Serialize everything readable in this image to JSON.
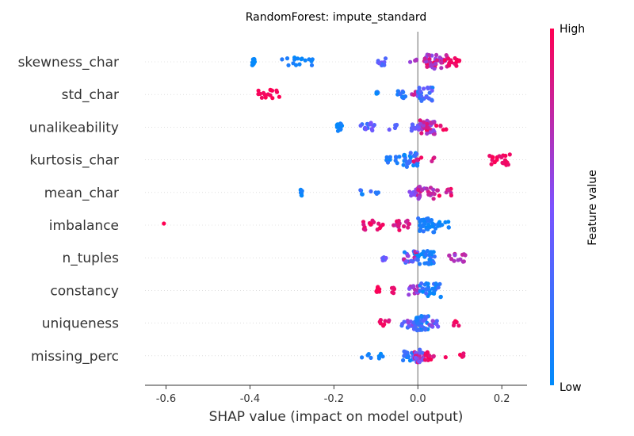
{
  "chart_data": {
    "type": "scatter",
    "subtype": "shap-beeswarm",
    "title": "RandomForest: impute_standard",
    "xlabel": "SHAP value (impact on model output)",
    "xlim": [
      -0.65,
      0.26
    ],
    "xticks": [
      "-0.6",
      "-0.4",
      "-0.2",
      "0.0",
      "0.2"
    ],
    "xtick_values": [
      -0.6,
      -0.4,
      -0.2,
      0.0,
      0.2
    ],
    "zero_line": 0.0,
    "colorbar": {
      "label": "Feature value",
      "high": "High",
      "low": "Low",
      "low_color": "#008bfb",
      "mid_color": "#7c52ff",
      "high_color": "#ff0052"
    },
    "features": [
      {
        "name": "skewness_char",
        "clusters": [
          {
            "x": [
              -0.395,
              -0.385
            ],
            "c": [
              0.0,
              0.05
            ],
            "n": 10
          },
          {
            "x": [
              -0.33,
              -0.25
            ],
            "c": [
              0.0,
              0.15
            ],
            "n": 16
          },
          {
            "x": [
              -0.095,
              -0.075
            ],
            "c": [
              0.25,
              0.5
            ],
            "n": 10
          },
          {
            "x": [
              -0.02,
              0.0
            ],
            "c": [
              0.6,
              0.7
            ],
            "n": 4
          },
          {
            "x": [
              0.015,
              0.07
            ],
            "c": [
              0.55,
              1.0
            ],
            "n": 45
          },
          {
            "x": [
              0.07,
              0.1
            ],
            "c": [
              0.9,
              1.0
            ],
            "n": 14
          }
        ]
      },
      {
        "name": "std_char",
        "clusters": [
          {
            "x": [
              -0.38,
              -0.33
            ],
            "c": [
              0.95,
              1.0
            ],
            "n": 16
          },
          {
            "x": [
              -0.1,
              -0.095
            ],
            "c": [
              0.0,
              0.15
            ],
            "n": 5
          },
          {
            "x": [
              -0.05,
              -0.02
            ],
            "c": [
              0.0,
              0.4
            ],
            "n": 12
          },
          {
            "x": [
              -0.02,
              0.0
            ],
            "c": [
              0.7,
              1.0
            ],
            "n": 6
          },
          {
            "x": [
              0.0,
              0.035
            ],
            "c": [
              0.1,
              0.5
            ],
            "n": 30
          }
        ]
      },
      {
        "name": "unalikeability",
        "clusters": [
          {
            "x": [
              -0.195,
              -0.18
            ],
            "c": [
              0.0,
              0.1
            ],
            "n": 12
          },
          {
            "x": [
              -0.14,
              -0.1
            ],
            "c": [
              0.2,
              0.5
            ],
            "n": 14
          },
          {
            "x": [
              -0.07,
              -0.05
            ],
            "c": [
              0.3,
              0.5
            ],
            "n": 5
          },
          {
            "x": [
              -0.015,
              0.005
            ],
            "c": [
              0.3,
              0.6
            ],
            "n": 12
          },
          {
            "x": [
              0.005,
              0.04
            ],
            "c": [
              0.5,
              1.0
            ],
            "n": 40
          },
          {
            "x": [
              0.04,
              0.08
            ],
            "c": [
              0.85,
              1.0
            ],
            "n": 6
          }
        ]
      },
      {
        "name": "kurtosis_char",
        "clusters": [
          {
            "x": [
              -0.075,
              -0.04
            ],
            "c": [
              0.0,
              0.2
            ],
            "n": 10
          },
          {
            "x": [
              -0.035,
              0.0
            ],
            "c": [
              0.0,
              0.3
            ],
            "n": 30
          },
          {
            "x": [
              -0.01,
              0.01
            ],
            "c": [
              0.8,
              1.0
            ],
            "n": 5
          },
          {
            "x": [
              0.03,
              0.06
            ],
            "c": [
              0.8,
              1.0
            ],
            "n": 3
          },
          {
            "x": [
              0.17,
              0.22
            ],
            "c": [
              0.9,
              1.0
            ],
            "n": 20
          }
        ]
      },
      {
        "name": "mean_char",
        "clusters": [
          {
            "x": [
              -0.28,
              -0.275
            ],
            "c": [
              0.0,
              0.1
            ],
            "n": 8
          },
          {
            "x": [
              -0.14,
              -0.08
            ],
            "c": [
              0.0,
              0.3
            ],
            "n": 8
          },
          {
            "x": [
              -0.02,
              0.0
            ],
            "c": [
              0.4,
              0.6
            ],
            "n": 10
          },
          {
            "x": [
              0.0,
              0.04
            ],
            "c": [
              0.6,
              0.9
            ],
            "n": 25
          },
          {
            "x": [
              0.04,
              0.08
            ],
            "c": [
              0.75,
              1.0
            ],
            "n": 10
          }
        ]
      },
      {
        "name": "imbalance",
        "clusters": [
          {
            "x": [
              -0.61,
              -0.6
            ],
            "c": [
              1.0,
              1.0
            ],
            "n": 1
          },
          {
            "x": [
              -0.13,
              -0.08
            ],
            "c": [
              0.85,
              1.0
            ],
            "n": 16
          },
          {
            "x": [
              -0.06,
              -0.02
            ],
            "c": [
              0.75,
              1.0
            ],
            "n": 18
          },
          {
            "x": [
              0.0,
              0.04
            ],
            "c": [
              0.0,
              0.2
            ],
            "n": 35
          },
          {
            "x": [
              0.04,
              0.075
            ],
            "c": [
              0.0,
              0.15
            ],
            "n": 10
          }
        ]
      },
      {
        "name": "n_tuples",
        "clusters": [
          {
            "x": [
              -0.085,
              -0.075
            ],
            "c": [
              0.3,
              0.5
            ],
            "n": 6
          },
          {
            "x": [
              -0.035,
              0.0
            ],
            "c": [
              0.0,
              1.0
            ],
            "n": 25
          },
          {
            "x": [
              0.0,
              0.04
            ],
            "c": [
              0.0,
              0.25
            ],
            "n": 30
          },
          {
            "x": [
              0.065,
              0.115
            ],
            "c": [
              0.6,
              0.8
            ],
            "n": 14
          }
        ]
      },
      {
        "name": "constancy",
        "clusters": [
          {
            "x": [
              -0.1,
              -0.09
            ],
            "c": [
              0.95,
              1.0
            ],
            "n": 10
          },
          {
            "x": [
              -0.065,
              -0.055
            ],
            "c": [
              0.9,
              1.0
            ],
            "n": 6
          },
          {
            "x": [
              -0.025,
              0.005
            ],
            "c": [
              0.4,
              0.8
            ],
            "n": 15
          },
          {
            "x": [
              0.005,
              0.055
            ],
            "c": [
              0.0,
              0.3
            ],
            "n": 30
          }
        ]
      },
      {
        "name": "uniqueness",
        "clusters": [
          {
            "x": [
              -0.095,
              -0.06
            ],
            "c": [
              0.8,
              1.0
            ],
            "n": 8
          },
          {
            "x": [
              -0.04,
              -0.01
            ],
            "c": [
              0.1,
              0.7
            ],
            "n": 15
          },
          {
            "x": [
              -0.01,
              0.025
            ],
            "c": [
              0.0,
              0.4
            ],
            "n": 40
          },
          {
            "x": [
              0.025,
              0.05
            ],
            "c": [
              0.2,
              0.7
            ],
            "n": 10
          },
          {
            "x": [
              0.07,
              0.1
            ],
            "c": [
              0.9,
              1.0
            ],
            "n": 6
          }
        ]
      },
      {
        "name": "missing_perc",
        "clusters": [
          {
            "x": [
              -0.14,
              -0.06
            ],
            "c": [
              0.0,
              0.15
            ],
            "n": 8
          },
          {
            "x": [
              -0.04,
              -0.01
            ],
            "c": [
              0.0,
              0.3
            ],
            "n": 18
          },
          {
            "x": [
              -0.01,
              0.015
            ],
            "c": [
              0.3,
              0.9
            ],
            "n": 30
          },
          {
            "x": [
              0.015,
              0.04
            ],
            "c": [
              0.8,
              1.0
            ],
            "n": 15
          },
          {
            "x": [
              0.06,
              0.135
            ],
            "c": [
              0.9,
              1.0
            ],
            "n": 5
          }
        ]
      }
    ]
  }
}
